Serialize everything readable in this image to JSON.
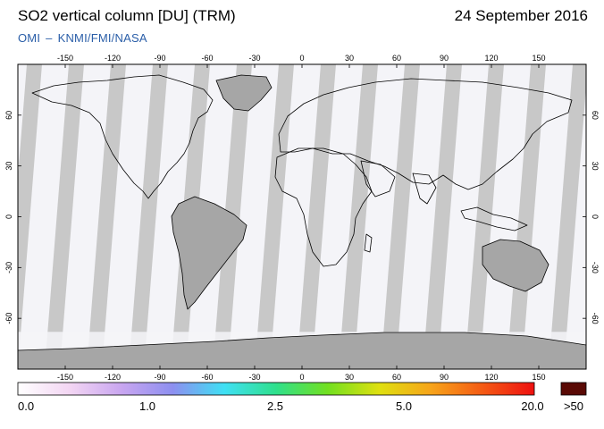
{
  "header": {
    "title": "SO2 vertical column [DU] (TRM)",
    "date": "24 September 2016",
    "credit_left": "OMI",
    "credit_sep": "–",
    "credit_right": "KNMI/FMI/NASA"
  },
  "map": {
    "lon_ticks": [
      -150,
      -120,
      -90,
      -60,
      -30,
      0,
      30,
      60,
      90,
      120,
      150
    ],
    "lat_ticks": [
      60,
      30,
      0,
      -30,
      -60
    ],
    "lon_range": [
      -180,
      180
    ],
    "lat_range": [
      -90,
      90
    ],
    "colors": {
      "background": "#c8c8c8",
      "swath": "#f4f4f8",
      "land_dark": "#a6a6a6",
      "frame": "#000000"
    }
  },
  "colorbar": {
    "labels": [
      "0.0",
      "1.0",
      "2.5",
      "5.0",
      "20.0",
      ">50"
    ],
    "stops": [
      "#ffffff",
      "#f3d6f3",
      "#c9a6f0",
      "#8d8ff0",
      "#3fe0f4",
      "#2fe08c",
      "#72e020",
      "#dfe010",
      "#f7a41a",
      "#f45a14",
      "#ee1010"
    ],
    "overflow_color": "#5a0a05"
  }
}
